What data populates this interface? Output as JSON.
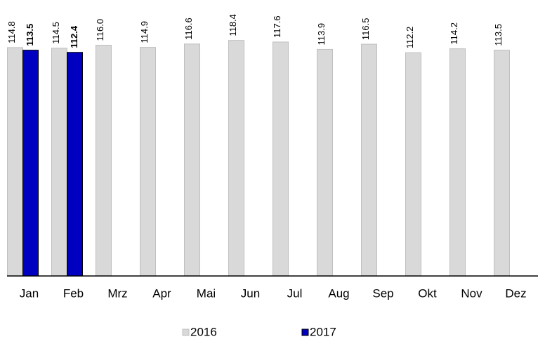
{
  "chart_data": {
    "type": "bar",
    "categories": [
      "Jan",
      "Feb",
      "Mrz",
      "Apr",
      "Mai",
      "Jun",
      "Jul",
      "Aug",
      "Sep",
      "Okt",
      "Nov",
      "Dez"
    ],
    "series": [
      {
        "name": "2016",
        "color": "#d9d9d9",
        "values": [
          114.8,
          114.5,
          116.0,
          114.9,
          116.6,
          118.4,
          117.6,
          113.9,
          116.5,
          112.2,
          114.2,
          113.5
        ],
        "value_labels": [
          "114.8",
          "114.5",
          "116.0",
          "114.9",
          "116.6",
          "118.4",
          "117.6",
          "113.9",
          "116.5",
          "112.2",
          "114.2",
          "113.5"
        ]
      },
      {
        "name": "2017",
        "color": "#0000c0",
        "values": [
          113.5,
          112.4,
          null,
          null,
          null,
          null,
          null,
          null,
          null,
          null,
          null,
          null
        ],
        "value_labels": [
          "113.5",
          "112.4",
          null,
          null,
          null,
          null,
          null,
          null,
          null,
          null,
          null,
          null
        ]
      }
    ],
    "ylim": [
      0,
      138
    ]
  }
}
